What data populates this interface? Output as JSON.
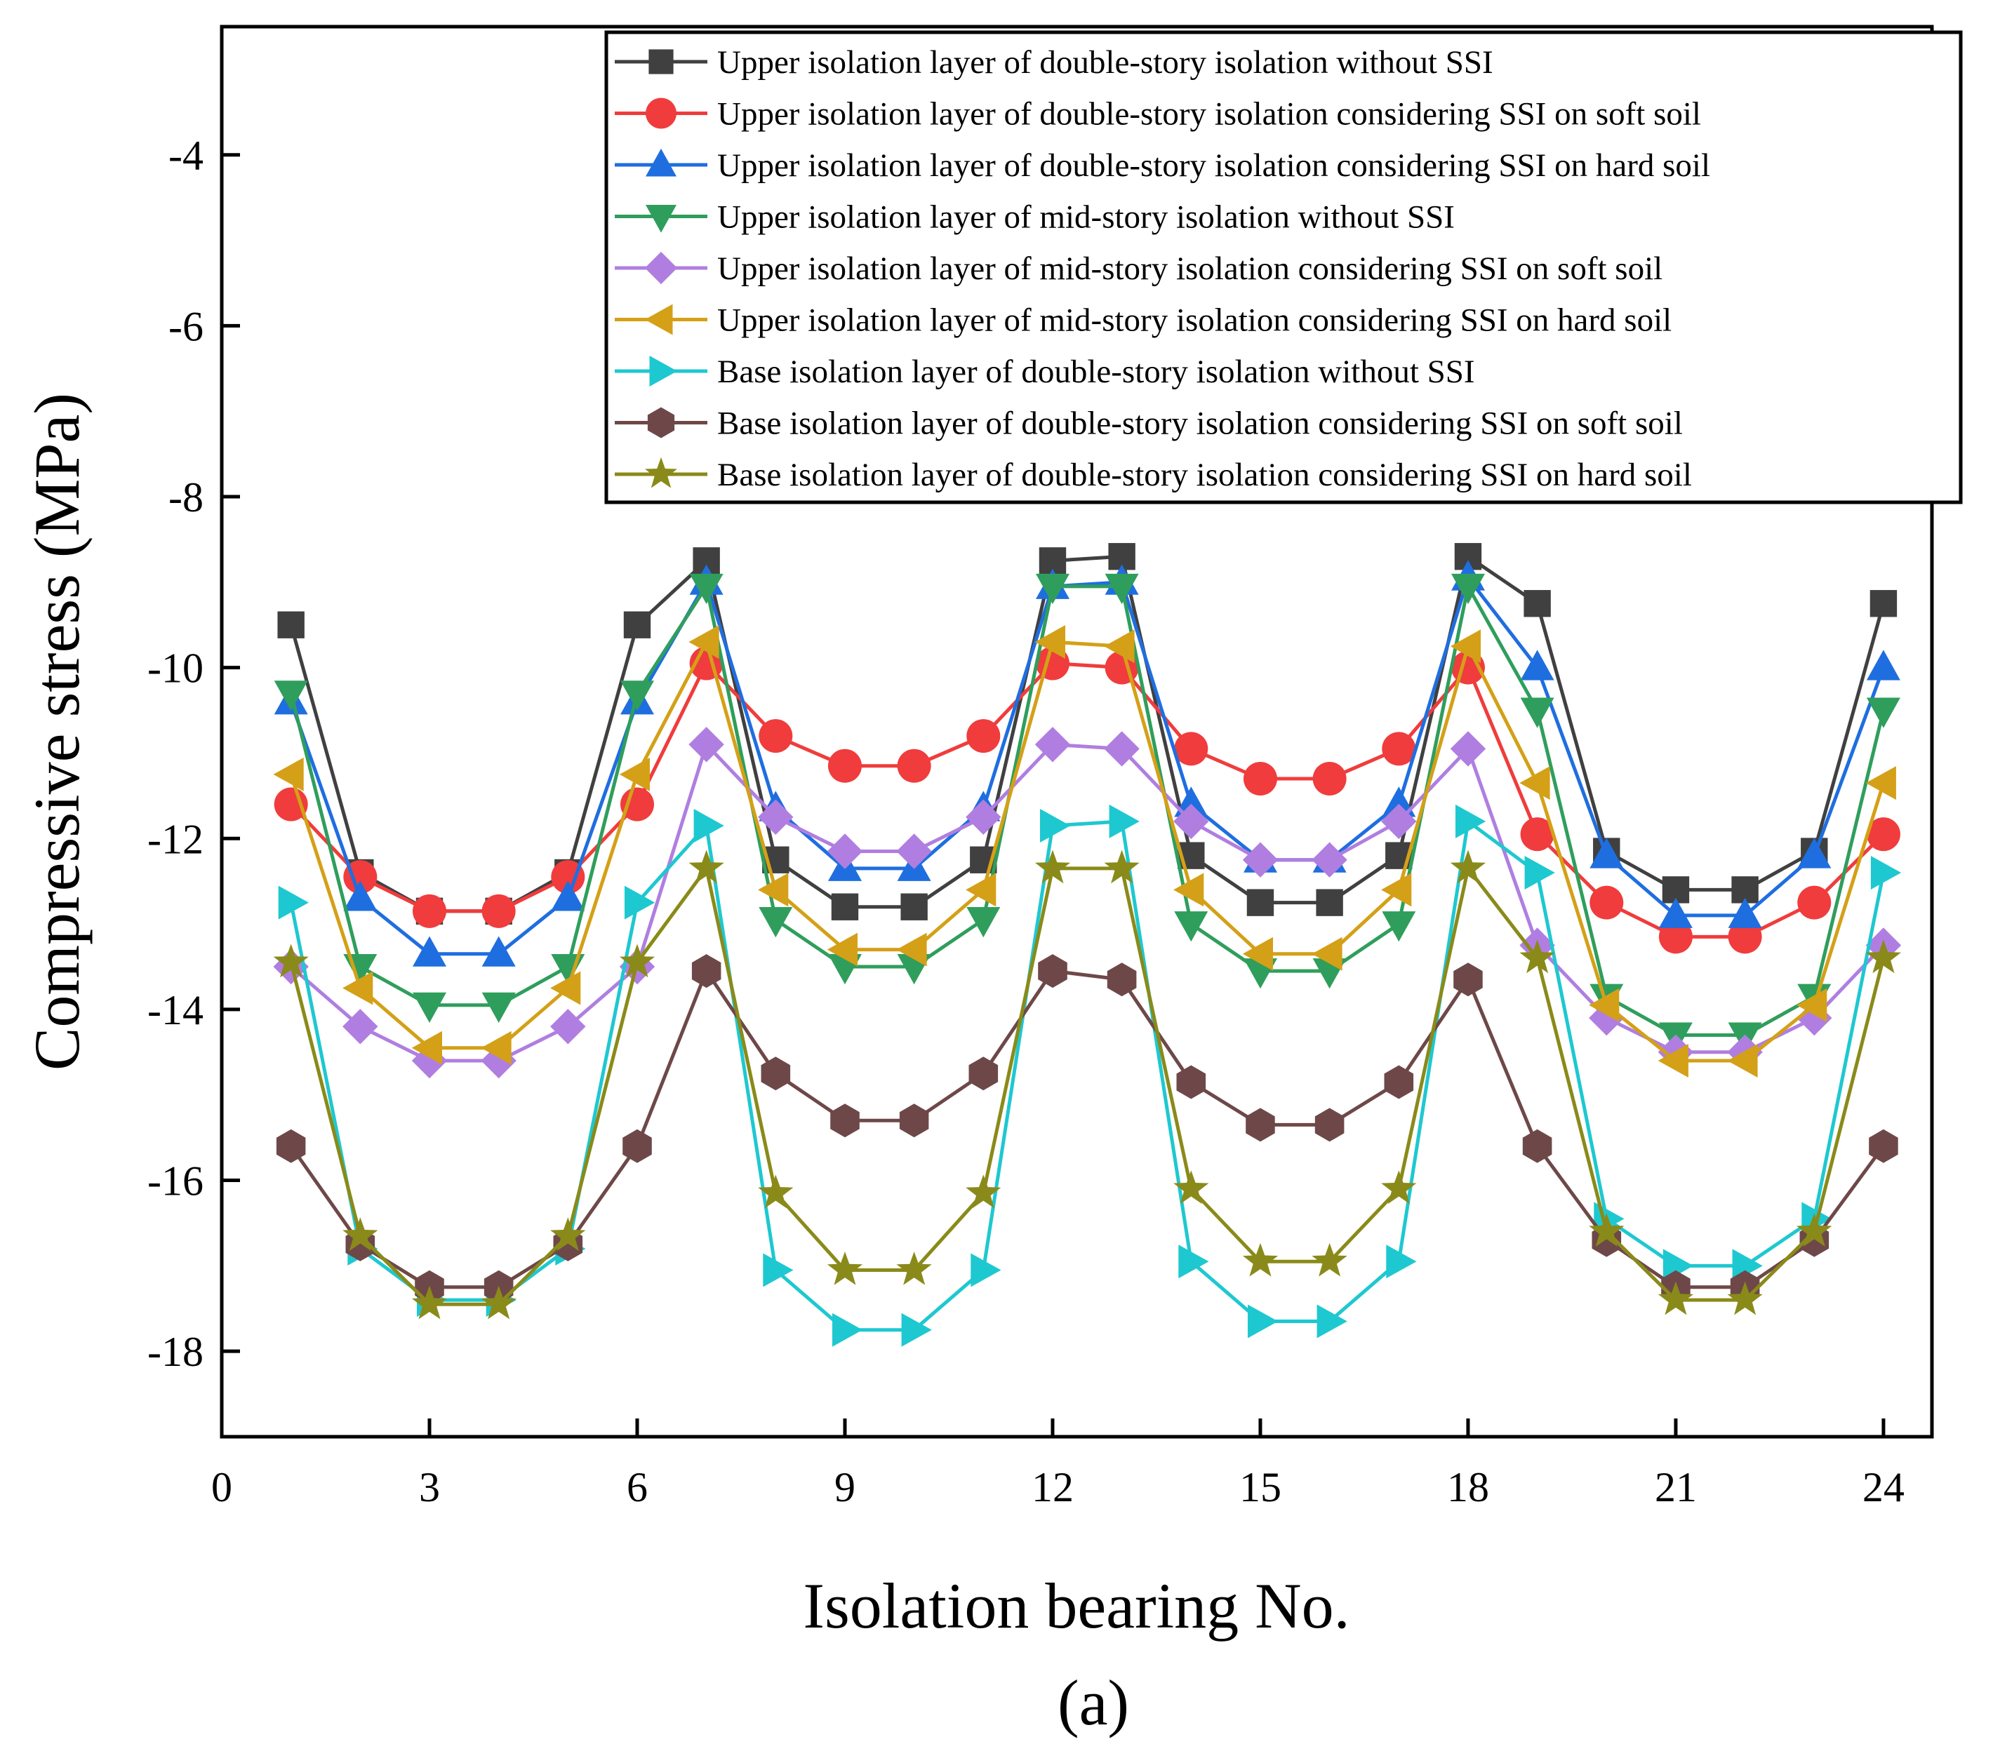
{
  "chart_data": {
    "type": "line",
    "title": "",
    "caption": "(a)",
    "xlabel": "Isolation bearing No.",
    "ylabel": "Compressive stress (MPa)",
    "xlim": [
      0,
      24.7
    ],
    "ylim": [
      -19,
      -2.5
    ],
    "xticks": [
      0,
      3,
      6,
      9,
      12,
      15,
      18,
      21,
      24
    ],
    "yticks": [
      -4,
      -6,
      -8,
      -10,
      -12,
      -14,
      -16,
      -18
    ],
    "grid": false,
    "legend_position": "top-right",
    "x": [
      1,
      2,
      3,
      4,
      5,
      6,
      7,
      8,
      9,
      10,
      11,
      12,
      13,
      14,
      15,
      16,
      17,
      18,
      19,
      20,
      21,
      22,
      23,
      24
    ],
    "series": [
      {
        "name": "Upper isolation layer of double-story isolation without SSI",
        "color": "#404040",
        "marker": "square",
        "values": [
          -9.5,
          -12.4,
          -12.85,
          -12.85,
          -12.4,
          -9.5,
          -8.75,
          -12.25,
          -12.8,
          -12.8,
          -12.25,
          -8.75,
          -8.7,
          -12.2,
          -12.75,
          -12.75,
          -12.2,
          -8.7,
          -9.25,
          -12.15,
          -12.6,
          -12.6,
          -12.15,
          -9.25
        ]
      },
      {
        "name": "Upper isolation layer of double-story isolation considering SSI on soft soil",
        "color": "#f03c3c",
        "marker": "circle",
        "values": [
          -11.6,
          -12.45,
          -12.85,
          -12.85,
          -12.45,
          -11.6,
          -9.95,
          -10.8,
          -11.15,
          -11.15,
          -10.8,
          -9.95,
          -10.0,
          -10.95,
          -11.3,
          -11.3,
          -10.95,
          -10.0,
          -11.95,
          -12.75,
          -13.15,
          -13.15,
          -12.75,
          -11.95
        ]
      },
      {
        "name": "Upper isolation layer of double-story isolation considering SSI on hard soil",
        "color": "#1f6ee0",
        "marker": "triangle-up",
        "values": [
          -10.4,
          -12.7,
          -13.35,
          -13.35,
          -12.7,
          -10.4,
          -9.0,
          -11.65,
          -12.35,
          -12.35,
          -11.65,
          -9.05,
          -9.0,
          -11.6,
          -12.25,
          -12.25,
          -11.6,
          -8.95,
          -10.0,
          -12.2,
          -12.9,
          -12.9,
          -12.2,
          -10.0
        ]
      },
      {
        "name": "Upper isolation layer of mid-story isolation without SSI",
        "color": "#2f9e5c",
        "marker": "triangle-down",
        "values": [
          -10.3,
          -13.5,
          -13.95,
          -13.95,
          -13.5,
          -10.3,
          -9.05,
          -12.95,
          -13.5,
          -13.5,
          -12.95,
          -9.05,
          -9.05,
          -13.0,
          -13.55,
          -13.55,
          -13.0,
          -9.05,
          -10.5,
          -13.85,
          -14.3,
          -14.3,
          -13.85,
          -10.5
        ]
      },
      {
        "name": "Upper isolation layer of mid-story isolation considering SSI on soft soil",
        "color": "#b07ee0",
        "marker": "diamond",
        "values": [
          -13.5,
          -14.2,
          -14.6,
          -14.6,
          -14.2,
          -13.5,
          -10.9,
          -11.75,
          -12.15,
          -12.15,
          -11.75,
          -10.9,
          -10.95,
          -11.8,
          -12.25,
          -12.25,
          -11.8,
          -10.95,
          -13.25,
          -14.1,
          -14.5,
          -14.5,
          -14.1,
          -13.25
        ]
      },
      {
        "name": "Upper isolation layer of mid-story isolation considering SSI on hard soil",
        "color": "#d4a017",
        "marker": "triangle-left",
        "values": [
          -11.25,
          -13.75,
          -14.45,
          -14.45,
          -13.75,
          -11.25,
          -9.7,
          -12.6,
          -13.3,
          -13.3,
          -12.6,
          -9.7,
          -9.75,
          -12.6,
          -13.35,
          -13.35,
          -12.6,
          -9.75,
          -11.35,
          -13.95,
          -14.6,
          -14.6,
          -13.95,
          -11.35
        ]
      },
      {
        "name": "Base isolation layer of  double-story isolation without SSI",
        "color": "#1ec8d0",
        "marker": "triangle-right",
        "values": [
          -12.75,
          -16.8,
          -17.4,
          -17.4,
          -16.8,
          -12.75,
          -11.85,
          -17.05,
          -17.75,
          -17.75,
          -17.05,
          -11.85,
          -11.8,
          -16.95,
          -17.65,
          -17.65,
          -16.95,
          -11.8,
          -12.4,
          -16.45,
          -17.0,
          -17.0,
          -16.45,
          -12.4
        ]
      },
      {
        "name": "Base isolation layer of double-story isolation considering SSI on soft soil",
        "color": "#6e4848",
        "marker": "hexagon",
        "values": [
          -15.6,
          -16.75,
          -17.25,
          -17.25,
          -16.75,
          -15.6,
          -13.55,
          -14.75,
          -15.3,
          -15.3,
          -14.75,
          -13.55,
          -13.65,
          -14.85,
          -15.35,
          -15.35,
          -14.85,
          -13.65,
          -15.6,
          -16.7,
          -17.25,
          -17.25,
          -16.7,
          -15.6
        ]
      },
      {
        "name": "Base isolation layer of double-story isolation considering SSI on hard soil",
        "color": "#8a8a1a",
        "marker": "star",
        "values": [
          -13.45,
          -16.65,
          -17.45,
          -17.45,
          -16.65,
          -13.45,
          -12.35,
          -16.15,
          -17.05,
          -17.05,
          -16.15,
          -12.35,
          -12.35,
          -16.1,
          -16.95,
          -16.95,
          -16.1,
          -12.35,
          -13.4,
          -16.6,
          -17.4,
          -17.4,
          -16.6,
          -13.4
        ]
      }
    ]
  }
}
